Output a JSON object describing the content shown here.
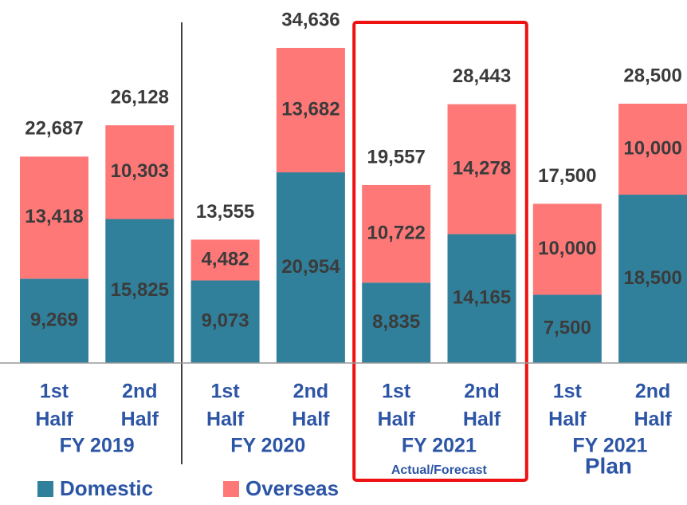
{
  "chart_data": {
    "type": "stacked-bar",
    "categories": [
      [
        "1st",
        "Half"
      ],
      [
        "2nd",
        "Half"
      ],
      [
        "1st",
        "Half"
      ],
      [
        "2nd",
        "Half"
      ],
      [
        "1st",
        "Half"
      ],
      [
        "2nd",
        "Half"
      ],
      [
        "1st",
        "Half"
      ],
      [
        "2nd",
        "Half"
      ]
    ],
    "groups": [
      {
        "name": "FY 2019"
      },
      {
        "name": "FY 2020"
      },
      {
        "name": "FY 2021",
        "note": "Actual/Forecast"
      },
      {
        "name": "FY 2021",
        "note": "Plan"
      }
    ],
    "highlight_group": 2,
    "highlight_color": "#ee1111",
    "series": [
      {
        "name": "Domestic",
        "color": "#31809b",
        "values": [
          9269,
          15825,
          9073,
          20954,
          8835,
          14165,
          7500,
          18500
        ],
        "value_labels": [
          "9,269",
          "15,825",
          "9,073",
          "20,954",
          "8,835",
          "14,165",
          "7,500",
          "18,500"
        ]
      },
      {
        "name": "Overseas",
        "color": "#ff7878",
        "values": [
          13418,
          10303,
          4482,
          13682,
          10722,
          14278,
          10000,
          10000
        ],
        "value_labels": [
          "13,418",
          "10,303",
          "4,482",
          "13,682",
          "10,722",
          "14,278",
          "10,000",
          "10,000"
        ]
      }
    ],
    "totals": [
      22687,
      26128,
      13555,
      34636,
      19557,
      28443,
      17500,
      28500
    ],
    "total_labels": [
      "22,687",
      "26,128",
      "13,555",
      "34,636",
      "19,557",
      "28,443",
      "17,500",
      "28,500"
    ]
  }
}
